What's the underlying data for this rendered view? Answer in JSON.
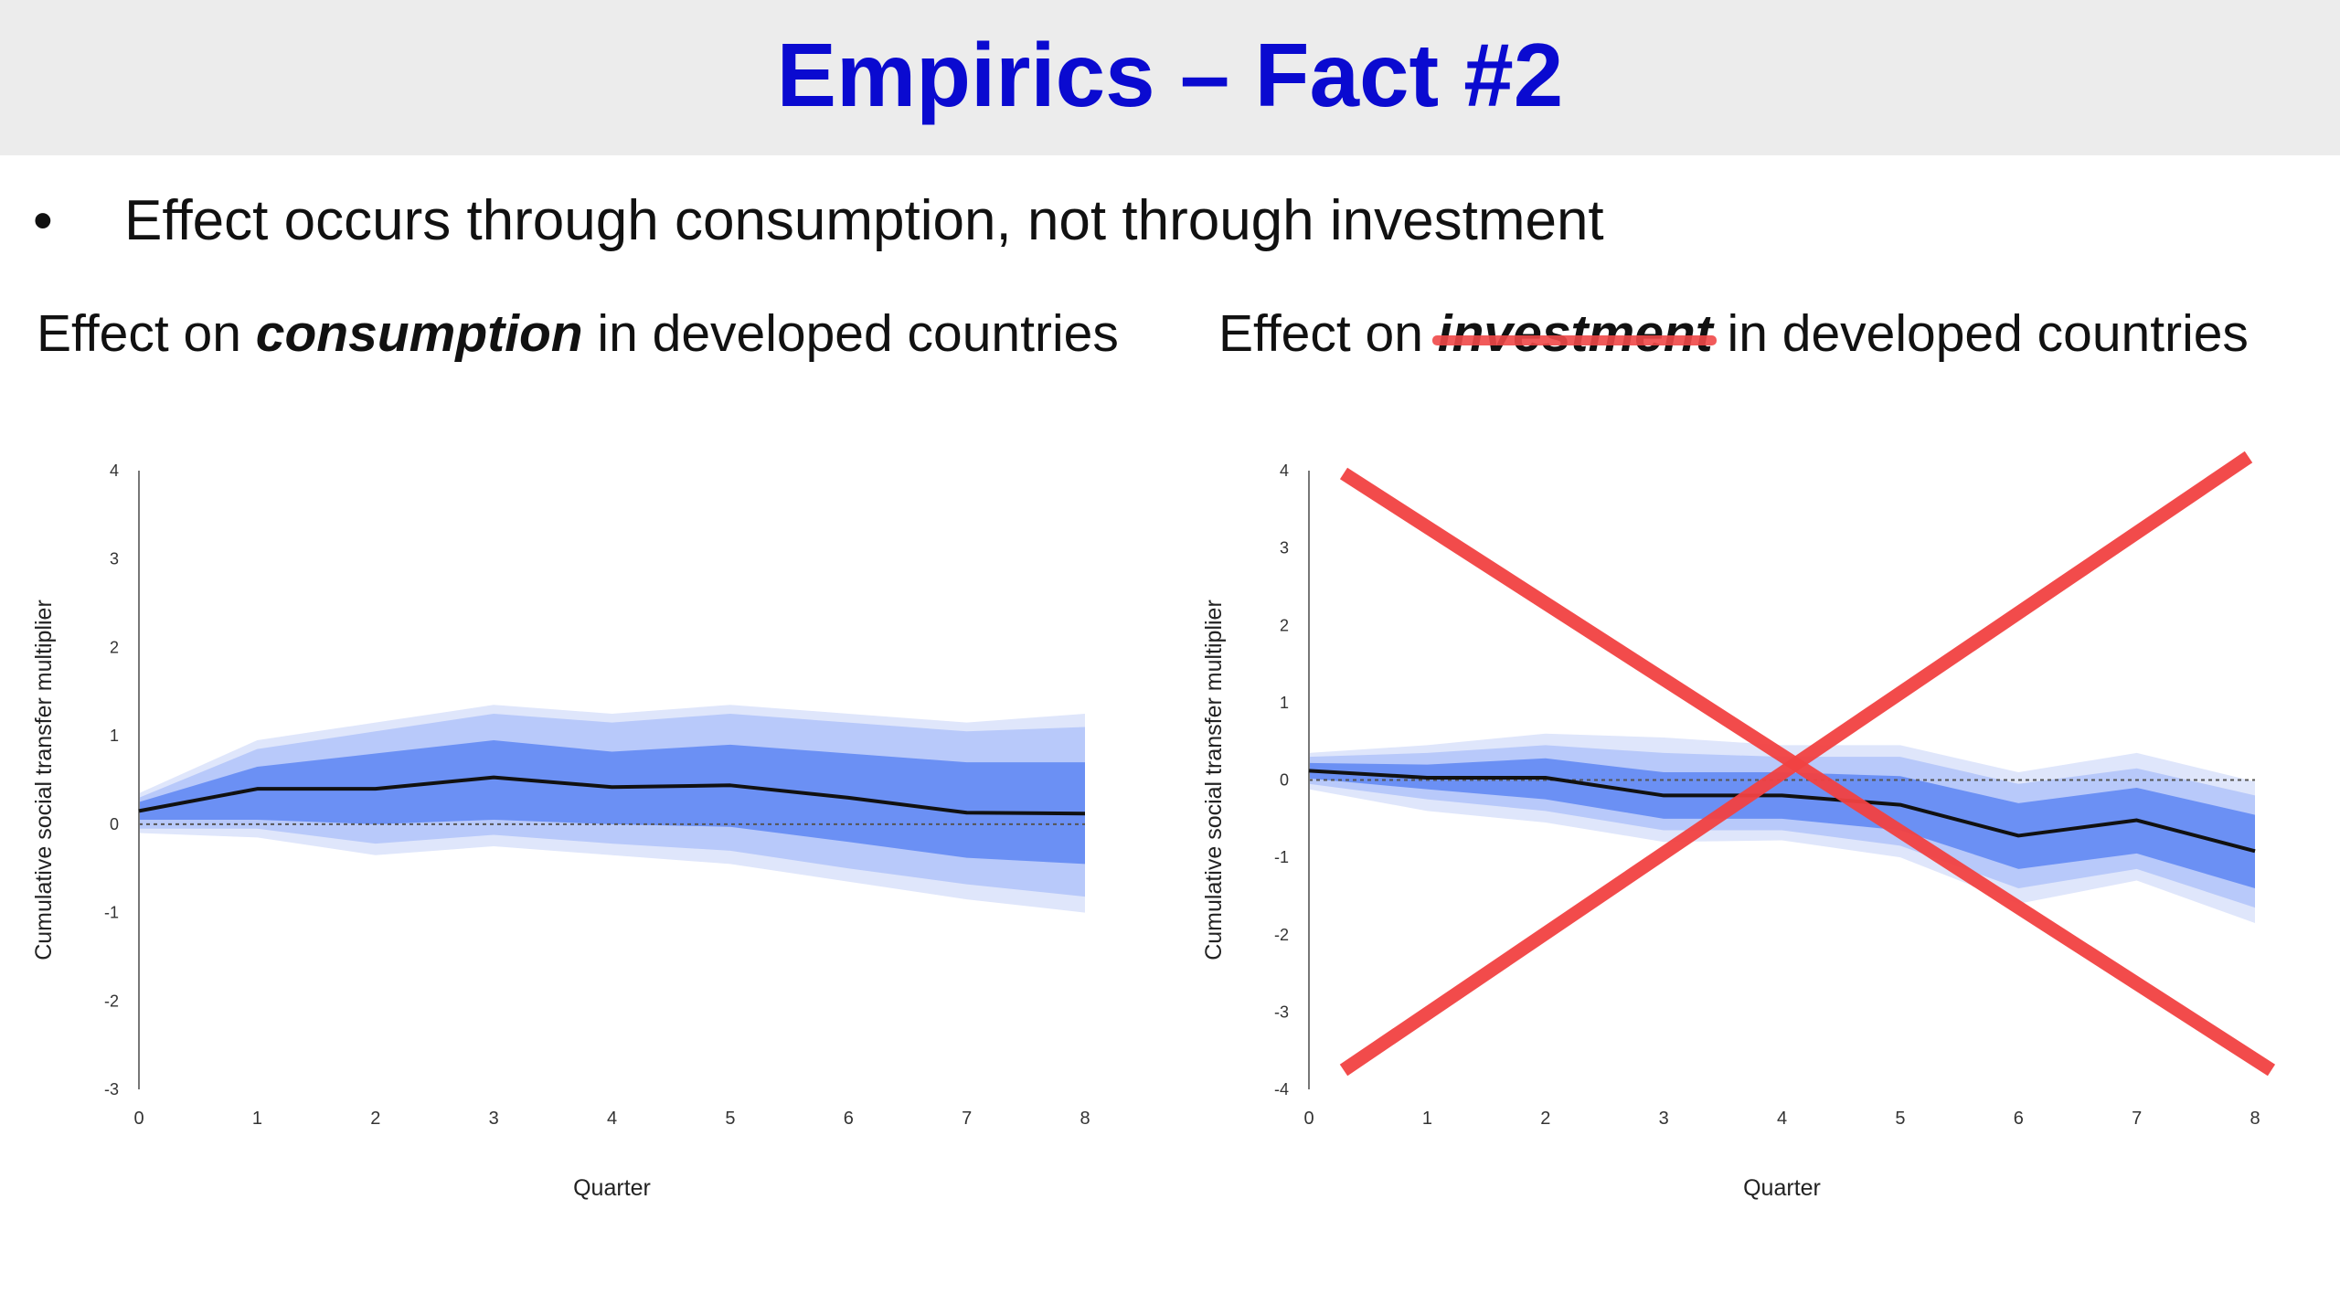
{
  "slide": {
    "title": "Empirics – Fact #2",
    "bullet_marker": "•",
    "bullet": "Effect occurs through consumption, not through investment"
  },
  "captions": {
    "left": {
      "pre": "Effect on ",
      "em": "consumption",
      "post": " in developed countries"
    },
    "right": {
      "pre": "Effect on ",
      "em": "investment",
      "post": " in developed countries",
      "strikethrough": true,
      "strike_color": "#f04848"
    }
  },
  "colors": {
    "title": "#0a0ad0",
    "band_outer": "#dfe6fb",
    "band_mid": "#b8c9fa",
    "band_inner": "#6b90f4",
    "line": "#111111",
    "cross": "#f24242"
  },
  "chart_data": [
    {
      "type": "area",
      "xlabel": "Quarter",
      "ylabel": "Cumulative social transfer multiplier",
      "ylim": [
        -3,
        4
      ],
      "yticks": [
        "4",
        "3",
        "2",
        "1",
        "0",
        "-1",
        "-2",
        "-3"
      ],
      "x": [
        0,
        1,
        2,
        3,
        4,
        5,
        6,
        7,
        8
      ],
      "xticks": [
        "0",
        "1",
        "2",
        "3",
        "4",
        "5",
        "6",
        "7",
        "8"
      ],
      "zero_line": "dashed",
      "series": [
        {
          "values": [
            0.15,
            0.4,
            0.4,
            0.53,
            0.42,
            0.44,
            0.3,
            0.13,
            0.12
          ]
        }
      ],
      "bands": [
        {
          "level": "outer",
          "upper": [
            0.35,
            0.95,
            1.15,
            1.35,
            1.25,
            1.35,
            1.25,
            1.15,
            1.25
          ],
          "lower": [
            -0.1,
            -0.15,
            -0.35,
            -0.25,
            -0.35,
            -0.45,
            -0.65,
            -0.85,
            -1.0
          ]
        },
        {
          "level": "mid",
          "upper": [
            0.3,
            0.85,
            1.05,
            1.25,
            1.15,
            1.25,
            1.15,
            1.05,
            1.1
          ],
          "lower": [
            -0.05,
            -0.05,
            -0.22,
            -0.12,
            -0.22,
            -0.3,
            -0.5,
            -0.68,
            -0.82
          ]
        },
        {
          "level": "inner",
          "upper": [
            0.25,
            0.65,
            0.8,
            0.95,
            0.82,
            0.9,
            0.8,
            0.7,
            0.7
          ],
          "lower": [
            0.05,
            0.05,
            0.0,
            0.05,
            0.0,
            -0.03,
            -0.2,
            -0.38,
            -0.45
          ]
        }
      ]
    },
    {
      "type": "area",
      "xlabel": "Quarter",
      "ylabel": "Cumulative social transfer multiplier",
      "ylim": [
        -4,
        4
      ],
      "yticks": [
        "4",
        "3",
        "2",
        "1",
        "0",
        "-1",
        "-2",
        "-3",
        "-4"
      ],
      "x": [
        0,
        1,
        2,
        3,
        4,
        5,
        6,
        7,
        8
      ],
      "xticks": [
        "0",
        "1",
        "2",
        "3",
        "4",
        "5",
        "6",
        "7",
        "8"
      ],
      "zero_line": "dashed",
      "crossed_out": true,
      "series": [
        {
          "values": [
            0.12,
            0.03,
            0.03,
            -0.2,
            -0.2,
            -0.32,
            -0.72,
            -0.52,
            -0.92
          ]
        }
      ],
      "bands": [
        {
          "level": "outer",
          "upper": [
            0.35,
            0.45,
            0.6,
            0.55,
            0.45,
            0.45,
            0.1,
            0.35,
            -0.02
          ],
          "lower": [
            -0.12,
            -0.4,
            -0.55,
            -0.8,
            -0.78,
            -1.0,
            -1.6,
            -1.3,
            -1.85
          ]
        },
        {
          "level": "mid",
          "upper": [
            0.3,
            0.35,
            0.45,
            0.35,
            0.3,
            0.3,
            -0.05,
            0.15,
            -0.2
          ],
          "lower": [
            -0.05,
            -0.25,
            -0.4,
            -0.65,
            -0.65,
            -0.85,
            -1.4,
            -1.15,
            -1.65
          ]
        },
        {
          "level": "inner",
          "upper": [
            0.22,
            0.2,
            0.28,
            0.1,
            0.1,
            0.05,
            -0.3,
            -0.1,
            -0.45
          ],
          "lower": [
            0.02,
            -0.12,
            -0.25,
            -0.5,
            -0.5,
            -0.65,
            -1.15,
            -0.95,
            -1.4
          ]
        }
      ]
    }
  ]
}
